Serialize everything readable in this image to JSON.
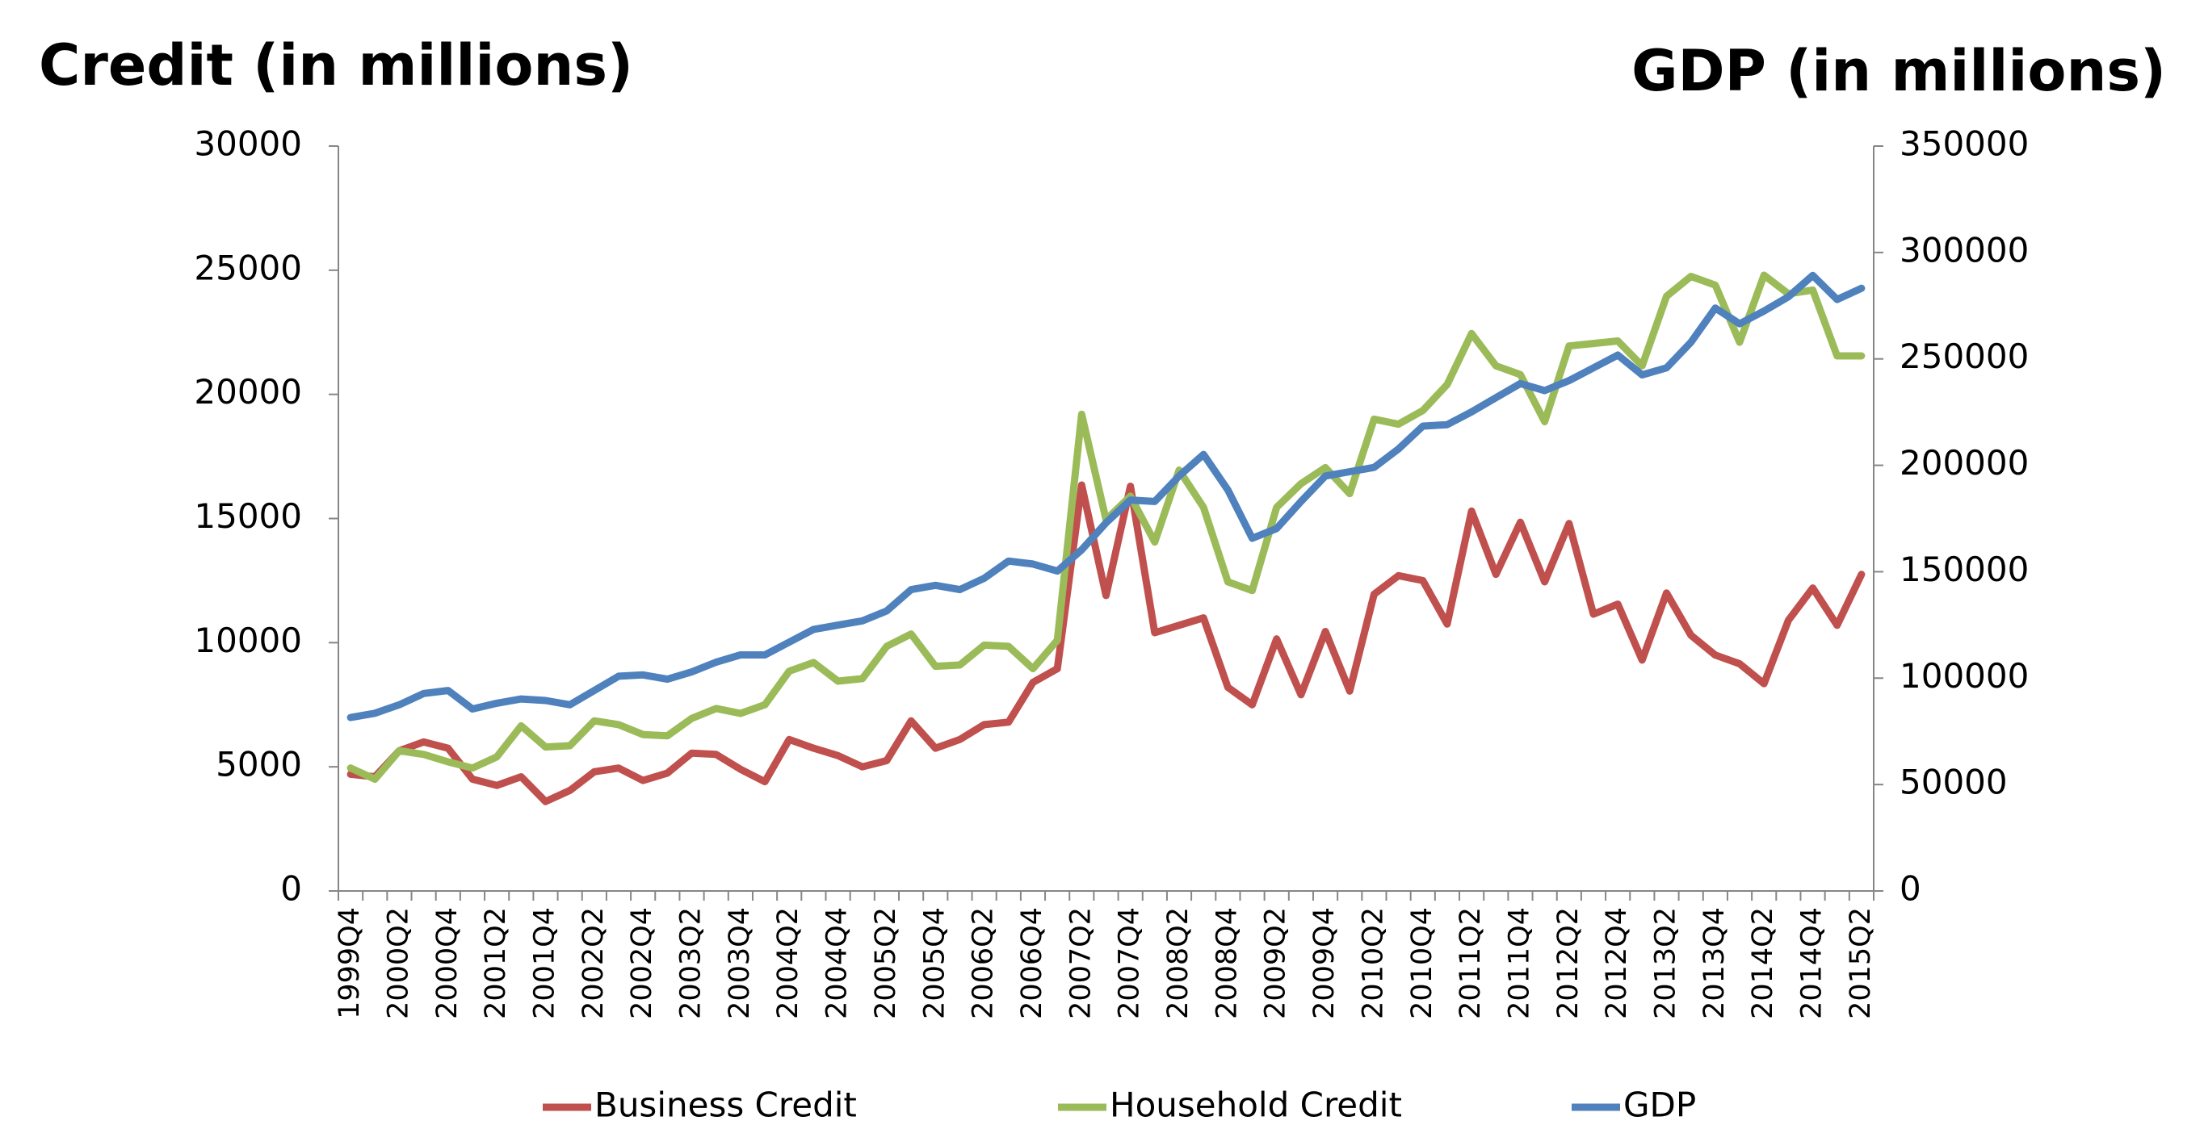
{
  "chart_data": {
    "type": "line",
    "y_title": "Credit (in millions)",
    "y2_title": "GDP (in millions)",
    "categories": [
      "1999Q4",
      null,
      "2000Q2",
      null,
      "2000Q4",
      null,
      "2001Q2",
      null,
      "2001Q4",
      null,
      "2002Q2",
      null,
      "2002Q4",
      null,
      "2003Q2",
      null,
      "2003Q4",
      null,
      "2004Q2",
      null,
      "2004Q4",
      null,
      "2005Q2",
      null,
      "2005Q4",
      null,
      "2006Q2",
      null,
      "2006Q4",
      null,
      "2007Q2",
      null,
      "2007Q4",
      null,
      "2008Q2",
      null,
      "2008Q4",
      null,
      "2009Q2",
      null,
      "2009Q4",
      null,
      "2010Q2",
      null,
      "2010Q4",
      null,
      "2011Q2",
      null,
      "2011Q4",
      null,
      "2012Q2",
      null,
      "2012Q4",
      null,
      "2013Q2",
      null,
      "2013Q4",
      null,
      "2014Q2",
      null,
      "2014Q4",
      null,
      "2015Q2"
    ],
    "series": [
      {
        "name": "Business Credit",
        "color": "#c0504d",
        "values": [
          4700,
          4600,
          5650,
          6000,
          5750,
          4500,
          4250,
          4600,
          3600,
          4050,
          4800,
          4950,
          4450,
          4750,
          5550,
          5500,
          4900,
          4400,
          6100,
          5750,
          5450,
          5000,
          5250,
          6850,
          5750,
          6100,
          6700,
          6800,
          8400,
          8950,
          16350,
          11900,
          16300,
          10400,
          10700,
          11000,
          8200,
          7500,
          10150,
          7900,
          10450,
          8050,
          11950,
          12700,
          12500,
          10750,
          15300,
          12750,
          14850,
          12450,
          14800,
          11150,
          11550,
          9300,
          12000,
          10300,
          9500,
          9150,
          8350,
          10900,
          12200,
          10700,
          12750
        ]
      },
      {
        "name": "Household Credit",
        "color": "#9bbb59",
        "values": [
          4950,
          4500,
          5650,
          5500,
          5200,
          4950,
          5400,
          6650,
          5800,
          5850,
          6850,
          6700,
          6300,
          6250,
          6950,
          7350,
          7150,
          7500,
          8850,
          9200,
          8450,
          8550,
          9850,
          10350,
          9050,
          9100,
          9900,
          9850,
          8950,
          10100,
          19200,
          14950,
          15900,
          14050,
          16950,
          15450,
          12450,
          12100,
          15450,
          16400,
          17050,
          16000,
          19000,
          18800,
          19350,
          20400,
          22450,
          21150,
          20800,
          18900,
          21950,
          22050,
          22150,
          21150,
          23950,
          24750,
          24400,
          22100,
          24800,
          24050,
          24200,
          21550,
          21550
        ]
      },
      {
        "name": "GDP",
        "color": "#4f81bd",
        "axis": "y2",
        "values": [
          81500,
          83500,
          87500,
          92800,
          94200,
          85500,
          88200,
          90200,
          89500,
          87500,
          94200,
          100900,
          101500,
          99500,
          102900,
          107500,
          110900,
          110900,
          116900,
          122900,
          124900,
          126900,
          131600,
          141600,
          143600,
          141600,
          146900,
          155000,
          153600,
          150300,
          160300,
          173000,
          183700,
          183000,
          195000,
          205100,
          188400,
          165700,
          170300,
          183000,
          195000,
          197000,
          199000,
          207700,
          218400,
          219100,
          225100,
          231800,
          238400,
          235100,
          239800,
          245800,
          251800,
          242500,
          245800,
          257800,
          273900,
          266500,
          272500,
          279200,
          289200,
          277900,
          283200
        ]
      }
    ],
    "ylim": [
      0,
      30000
    ],
    "yticks": [
      0,
      5000,
      10000,
      15000,
      20000,
      25000,
      30000
    ],
    "y2lim": [
      0,
      350000
    ],
    "y2ticks": [
      0,
      50000,
      100000,
      150000,
      200000,
      250000,
      300000,
      350000
    ],
    "grid": false,
    "legend": "bottom"
  }
}
